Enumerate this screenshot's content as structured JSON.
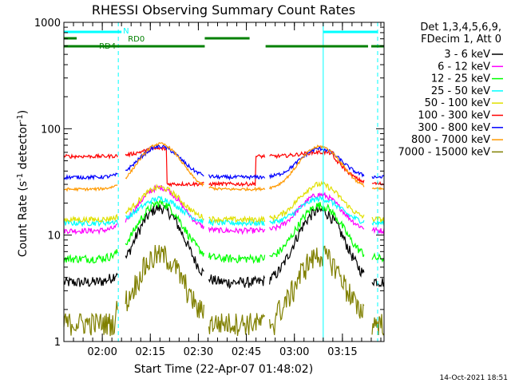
{
  "chart_data": {
    "type": "line",
    "title": "RHESSI Observing Summary Count Rates",
    "xlabel": "Start Time (22-Apr-07 01:48:02)",
    "ylabel_main": "Count Rate (s",
    "ylabel_sup1": "-1",
    "ylabel_mid": " detector",
    "ylabel_sup2": "-1",
    "ylabel_end": ")",
    "y_scale": "log",
    "ylim": [
      1,
      1000
    ],
    "xlim_minutes": [
      0,
      100
    ],
    "x_ticks": [
      {
        "label": "02:00",
        "minute": 12
      },
      {
        "label": "02:15",
        "minute": 27
      },
      {
        "label": "02:30",
        "minute": 42
      },
      {
        "label": "02:45",
        "minute": 57
      },
      {
        "label": "03:00",
        "minute": 72
      },
      {
        "label": "03:15",
        "minute": 87
      }
    ],
    "y_ticks": [
      {
        "label": "1",
        "value": 1
      },
      {
        "label": "10",
        "value": 10
      },
      {
        "label": "100",
        "value": 100
      },
      {
        "label": "1000",
        "value": 1000
      }
    ],
    "legend_header": [
      "Det 1,3,4,5,6,9,",
      "FDecim 1, Att 0"
    ],
    "legend_placement": "right",
    "series": [
      {
        "name": "3 - 6 keV",
        "color": "#000000",
        "shape": "bump",
        "base": 3.6,
        "peak1": 18,
        "peak2": 17,
        "noise": 0.12
      },
      {
        "name": "6 - 12 keV",
        "color": "#ff00ff",
        "shape": "bump",
        "base": 11,
        "peak1": 28,
        "peak2": 24,
        "noise": 0.06
      },
      {
        "name": "12 - 25 keV",
        "color": "#00ff00",
        "shape": "bump",
        "base": 6,
        "peak1": 20,
        "peak2": 19,
        "noise": 0.09
      },
      {
        "name": "25 - 50 keV",
        "color": "#00ffff",
        "shape": "bump",
        "base": 13,
        "peak1": 22,
        "peak2": 22,
        "noise": 0.06
      },
      {
        "name": "50 - 100 keV",
        "color": "#e0e000",
        "shape": "bump",
        "base": 14,
        "peak1": 28,
        "peak2": 30,
        "noise": 0.06
      },
      {
        "name": "100 - 300 keV",
        "color": "#ff0000",
        "shape": "red",
        "base": 55,
        "peak1": 65,
        "peak2": 60,
        "noise": 0.04
      },
      {
        "name": "300 - 800 keV",
        "color": "#0000ff",
        "shape": "bump",
        "base": 35,
        "peak1": 68,
        "peak2": 65,
        "noise": 0.04
      },
      {
        "name": "800 - 7000 keV",
        "color": "#ff9900",
        "shape": "bump",
        "base": 27,
        "peak1": 72,
        "peak2": 68,
        "noise": 0.03
      },
      {
        "name": "7000 - 15000 keV",
        "color": "#808000",
        "shape": "steps",
        "base": 1.5,
        "peak1": 6.5,
        "peak2": 6.5,
        "noise": 0.25
      }
    ],
    "annotations": [
      {
        "label": "N",
        "color": "#00ffff"
      },
      {
        "label": "RD0",
        "color": "#008000"
      },
      {
        "label": "RD4",
        "color": "#008000"
      }
    ],
    "night_segments_minutes": [
      [
        0,
        18
      ],
      [
        81,
        98
      ]
    ],
    "rd0_segments_minutes": [
      [
        0,
        4
      ],
      [
        44,
        58
      ]
    ],
    "rd4_segments_minutes": [
      [
        0,
        18
      ],
      [
        16,
        44
      ],
      [
        63,
        95
      ],
      [
        96,
        100
      ]
    ],
    "saa_lines_minutes": [
      {
        "minute": 17,
        "style": "dashed"
      },
      {
        "minute": 81,
        "style": "solid"
      },
      {
        "minute": 98,
        "style": "dashed"
      }
    ],
    "peak_minutes": [
      30,
      80
    ],
    "gap_minutes": [
      [
        17,
        19
      ],
      [
        44,
        45
      ],
      [
        63,
        64
      ],
      [
        94,
        96
      ]
    ],
    "footer_date": "14-Oct-2021 18:51"
  }
}
